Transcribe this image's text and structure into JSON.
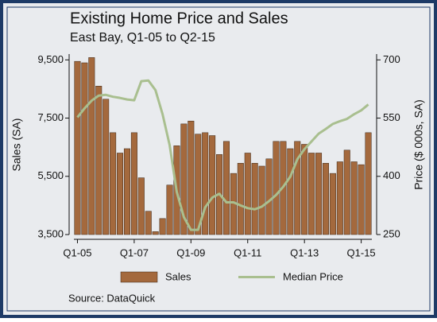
{
  "chart_data": {
    "type": "bar",
    "title": "Existing Home Price and Sales",
    "subtitle": "East Bay, Q1-05 to Q2-15",
    "y_label": "Sales (SA)",
    "y2_label": "Price ($ 000s, SA)",
    "source": "Source: DataQuick",
    "categories": [
      "Q1-05",
      null,
      null,
      null,
      null,
      null,
      null,
      null,
      "Q1-07",
      null,
      null,
      null,
      null,
      null,
      null,
      null,
      "Q1-09",
      null,
      null,
      null,
      null,
      null,
      null,
      null,
      "Q1-11",
      null,
      null,
      null,
      null,
      null,
      null,
      null,
      "Q1-13",
      null,
      null,
      null,
      null,
      null,
      null,
      null,
      "Q1-15",
      null
    ],
    "series": [
      {
        "name": "Sales",
        "type": "bar",
        "color": "#a4693d",
        "values": [
          9450,
          9400,
          9580,
          8600,
          8150,
          7000,
          6300,
          6450,
          7000,
          5450,
          4300,
          3600,
          4050,
          5200,
          6550,
          7300,
          7400,
          6950,
          7000,
          6900,
          6250,
          6700,
          5600,
          5950,
          6300,
          5950,
          5850,
          6100,
          6700,
          6700,
          6450,
          6700,
          6600,
          6300,
          6300,
          5950,
          5600,
          6000,
          6400,
          6000,
          5900,
          7000
        ]
      },
      {
        "name": "Median Price",
        "type": "line",
        "axis": "y2",
        "color": "#a9bf8f",
        "values": [
          552,
          575,
          595,
          608,
          610,
          605,
          602,
          598,
          596,
          645,
          647,
          622,
          560,
          480,
          360,
          295,
          262,
          262,
          320,
          345,
          355,
          333,
          333,
          325,
          318,
          315,
          322,
          336,
          352,
          373,
          399,
          444,
          470,
          490,
          510,
          522,
          535,
          542,
          548,
          560,
          570,
          585
        ]
      }
    ],
    "ylim": [
      3500,
      9700
    ],
    "yticks": [
      {
        "value": 3500,
        "label": "3,500"
      },
      {
        "value": 5500,
        "label": "5,500"
      },
      {
        "value": 7500,
        "label": "7,500"
      },
      {
        "value": 9500,
        "label": "9,500"
      }
    ],
    "y2lim": [
      250,
      715
    ],
    "y2ticks": [
      250,
      400,
      550,
      700
    ]
  }
}
